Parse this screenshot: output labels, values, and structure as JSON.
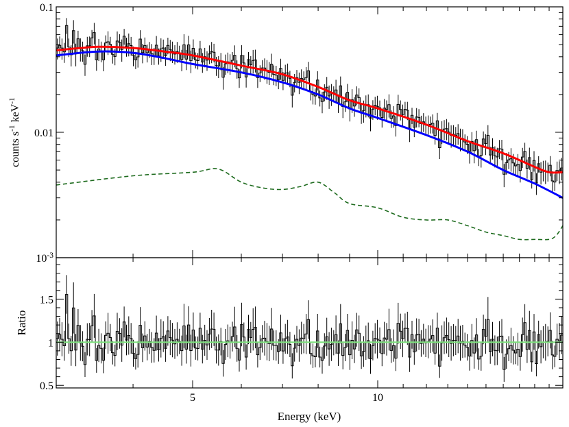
{
  "chart_data": [
    {
      "panel": "spectrum",
      "type": "line",
      "xlabel": "Energy (keV)",
      "ylabel": "counts s⁻¹ keV⁻¹",
      "xscale": "log",
      "yscale": "log",
      "xlim": [
        3.0,
        20.0
      ],
      "ylim": [
        0.001,
        0.1
      ],
      "xticks": [
        5,
        10
      ],
      "yticks": [
        {
          "value": 0.1,
          "label": "0.1"
        },
        {
          "value": 0.01,
          "label": "0.01"
        },
        {
          "value": 0.001,
          "label": "10⁻³"
        }
      ],
      "grid": false,
      "series": [
        {
          "role": "data",
          "style": "step-with-errorbars",
          "color": "#000000",
          "x_range": [
            3.0,
            20.0
          ],
          "n_bins": 220,
          "approx_relative_error": 0.18
        },
        {
          "role": "total-model",
          "style": "solid",
          "color": "#ff0000",
          "x": [
            3.0,
            3.5,
            4.0,
            4.5,
            5.0,
            6.0,
            7.0,
            8.0,
            9.0,
            10.0,
            12.0,
            14.0,
            16.0,
            18.0,
            19.0,
            20.0
          ],
          "y": [
            0.045,
            0.048,
            0.047,
            0.044,
            0.041,
            0.034,
            0.029,
            0.023,
            0.018,
            0.0155,
            0.0115,
            0.0085,
            0.0068,
            0.0053,
            0.0048,
            0.0048
          ]
        },
        {
          "role": "component",
          "style": "solid",
          "color": "#0000ff",
          "x": [
            3.0,
            3.5,
            4.0,
            4.5,
            5.0,
            6.0,
            7.0,
            8.0,
            9.0,
            10.0,
            12.0,
            14.0,
            16.0,
            18.0,
            20.0
          ],
          "y": [
            0.041,
            0.044,
            0.043,
            0.039,
            0.035,
            0.03,
            0.025,
            0.02,
            0.0155,
            0.013,
            0.0095,
            0.007,
            0.005,
            0.0039,
            0.003
          ]
        },
        {
          "role": "component",
          "style": "dashed",
          "color": "#1e6b1e",
          "x": [
            3.0,
            4.0,
            5.0,
            5.5,
            6.0,
            6.5,
            7.0,
            7.5,
            8.0,
            8.5,
            9.0,
            10.0,
            11.0,
            12.0,
            13.0,
            14.0,
            15.0,
            16.0,
            17.0,
            18.0,
            19.0,
            19.5,
            20.0
          ],
          "y": [
            0.0038,
            0.0045,
            0.0048,
            0.0051,
            0.004,
            0.0036,
            0.0035,
            0.0037,
            0.004,
            0.0033,
            0.0027,
            0.0025,
            0.0021,
            0.002,
            0.002,
            0.0018,
            0.0016,
            0.0015,
            0.0014,
            0.0014,
            0.0014,
            0.0015,
            0.0018
          ]
        }
      ]
    },
    {
      "panel": "ratio",
      "type": "line",
      "xlabel": "Energy (keV)",
      "ylabel": "Ratio",
      "xscale": "log",
      "yscale": "linear",
      "xlim": [
        3.0,
        20.0
      ],
      "ylim": [
        0.47,
        1.98
      ],
      "xticks": [
        5,
        10
      ],
      "yticks": [
        {
          "value": 0.5,
          "label": "0.5"
        },
        {
          "value": 1,
          "label": "1"
        },
        {
          "value": 1.5,
          "label": "1.5"
        }
      ],
      "grid": false,
      "series": [
        {
          "role": "data",
          "style": "step-with-errorbars",
          "color": "#000000",
          "x_range": [
            3.0,
            20.0
          ],
          "n_bins": 220,
          "approx_scatter": 0.12
        },
        {
          "role": "unity-line",
          "style": "solid",
          "color": "#7fe07f",
          "x": [
            3.0,
            20.0
          ],
          "y": [
            1.0,
            1.0
          ]
        }
      ]
    }
  ]
}
